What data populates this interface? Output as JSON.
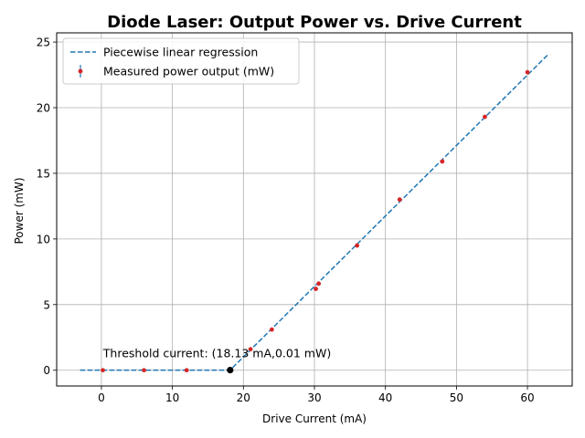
{
  "chart_data": {
    "type": "scatter",
    "title": "Diode Laser: Output Power vs. Drive Current",
    "xlabel": "Drive Current (mA)",
    "ylabel": "Power (mW)",
    "xlim": [
      -6.3,
      66.3
    ],
    "ylim": [
      -1.2,
      25.7
    ],
    "xticks": [
      0,
      10,
      20,
      30,
      40,
      50,
      60
    ],
    "yticks": [
      0,
      5,
      10,
      15,
      20,
      25
    ],
    "grid": true,
    "legend_position": "top-left",
    "series": [
      {
        "name": "Piecewise linear regression",
        "kind": "dashed-line",
        "color": "#1f77b4",
        "x": [
          -3,
          18.13,
          63
        ],
        "y": [
          0.01,
          0.01,
          24.1
        ]
      },
      {
        "name": "Measured power output (mW)",
        "kind": "points-with-errorbars",
        "color": "#d62728",
        "errorbar_color": "#1f77b4",
        "x": [
          0.2,
          6,
          12,
          18,
          21,
          24,
          30.2,
          30.6,
          36,
          42,
          48,
          54,
          60
        ],
        "y": [
          0.0,
          0.0,
          0.0,
          0.0,
          1.6,
          3.1,
          6.2,
          6.6,
          9.5,
          13.0,
          15.9,
          19.3,
          22.7
        ]
      }
    ],
    "threshold_point": {
      "x": 18.13,
      "y": 0.01,
      "color": "#000000"
    },
    "annotation": "Threshold current: (18.13 mA,0.01 mW)"
  }
}
